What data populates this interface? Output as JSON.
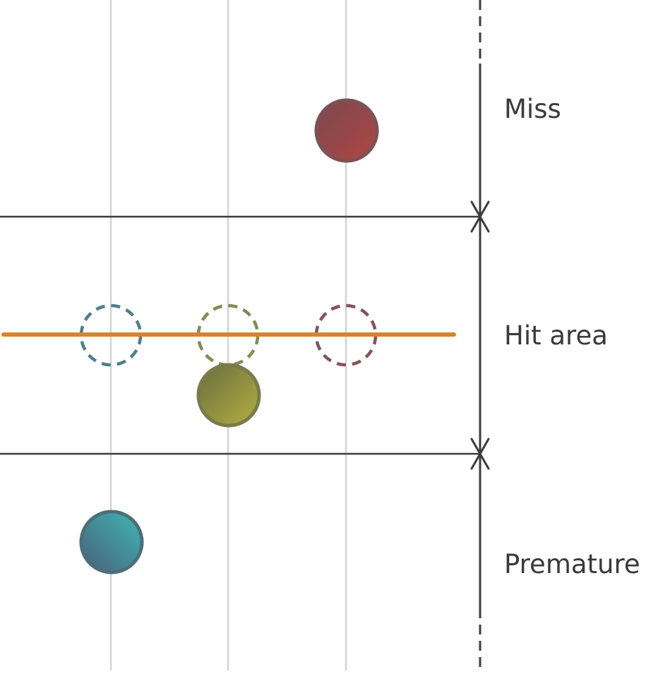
{
  "zones": {
    "miss": "Miss",
    "hit_area": "Hit area",
    "premature": "Premature"
  },
  "colors": {
    "lane_line": "#d4d4d4",
    "boundary_line": "#3c3c3c",
    "hit_line": "#d6852a",
    "note_teal": "#4a8f9a",
    "note_olive": "#8c8f45",
    "note_red": "#8c4b4e"
  },
  "notes": [
    {
      "lane": 1,
      "zone": "premature",
      "color": "teal"
    },
    {
      "lane": 2,
      "zone": "hit_area",
      "color": "olive"
    },
    {
      "lane": 3,
      "zone": "miss",
      "color": "red"
    }
  ],
  "targets": [
    {
      "lane": 1,
      "color": "teal"
    },
    {
      "lane": 2,
      "color": "olive"
    },
    {
      "lane": 3,
      "color": "red"
    }
  ]
}
